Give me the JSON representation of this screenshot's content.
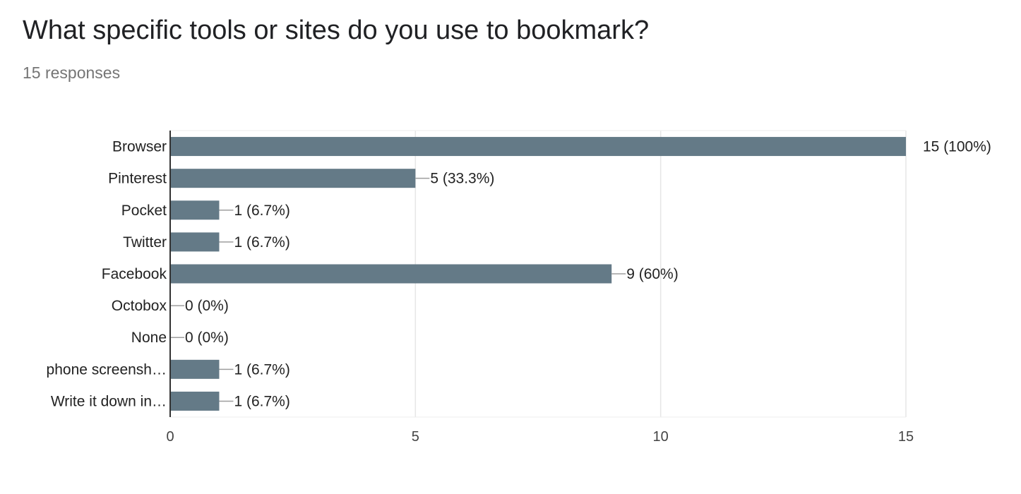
{
  "header": {
    "question": "What specific tools or sites do you use to bookmark?",
    "responses": "15 responses"
  },
  "chart_data": {
    "type": "bar",
    "orientation": "horizontal",
    "categories": [
      "Browser",
      "Pinterest",
      "Pocket",
      "Twitter",
      "Facebook",
      "Octobox",
      "None",
      "phone screensh…",
      "Write it down in…"
    ],
    "values": [
      15,
      5,
      1,
      1,
      9,
      0,
      0,
      1,
      1
    ],
    "value_labels": [
      "15 (100%)",
      "5 (33.3%)",
      "1 (6.7%)",
      "1 (6.7%)",
      "9 (60%)",
      "0 (0%)",
      "0 (0%)",
      "1 (6.7%)",
      "1 (6.7%)"
    ],
    "xlim": [
      0,
      15
    ],
    "xticks": [
      0,
      5,
      10,
      15
    ],
    "grid": true,
    "bar_color": "#647a87"
  }
}
